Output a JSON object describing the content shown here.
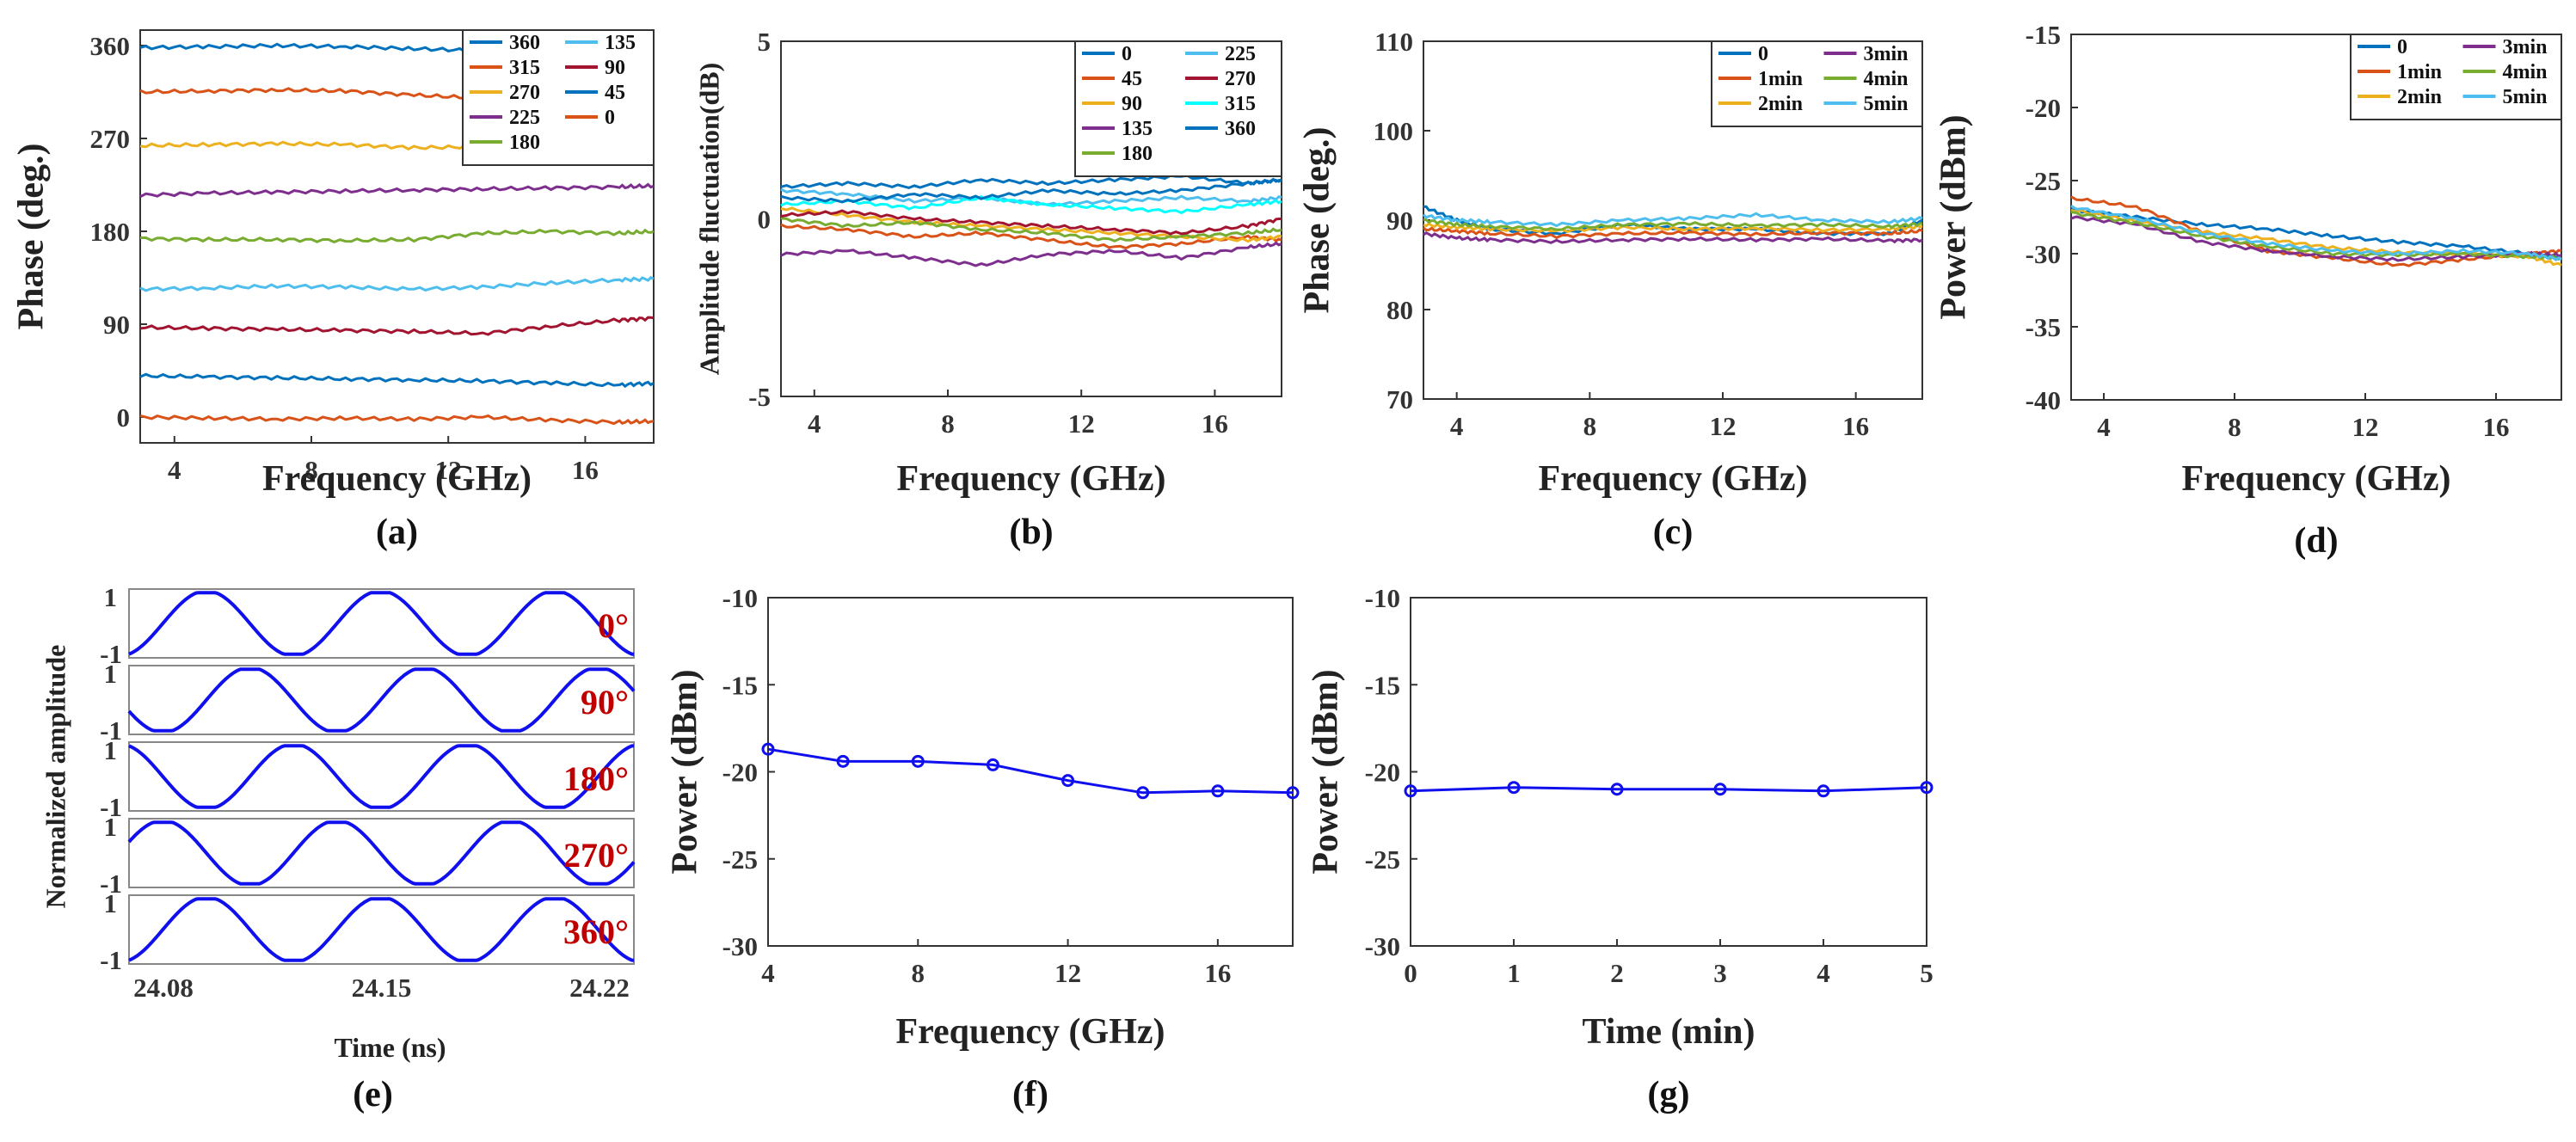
{
  "colors": {
    "matlab": [
      "#0072BD",
      "#D95319",
      "#EDB120",
      "#7E2F8E",
      "#77AC30",
      "#4DBEEE",
      "#A2142F"
    ],
    "marker_line": "#1010ee",
    "degree_label": "#c00000"
  },
  "chart_data": [
    {
      "id": "a",
      "panel_label": "(a)",
      "type": "line",
      "xlabel": "Frequency (GHz)",
      "ylabel": "Phase (deg.)",
      "xlim": [
        3,
        18
      ],
      "ylim": [
        -25,
        375
      ],
      "xticks": [
        4,
        8,
        12,
        16
      ],
      "yticks": [
        0,
        90,
        180,
        270,
        360
      ],
      "legend_order": [
        "360",
        "135",
        "315",
        "90",
        "270",
        "45",
        "225",
        "0",
        "180"
      ],
      "series": [
        {
          "name": "360",
          "color": "#0072BD",
          "x": [
            3,
            5,
            7,
            9,
            11,
            13,
            15,
            17,
            18
          ],
          "y": [
            358,
            359,
            360,
            359,
            357,
            355,
            356,
            357,
            356
          ]
        },
        {
          "name": "315",
          "color": "#D95319",
          "x": [
            3,
            5,
            7,
            9,
            11,
            13,
            15,
            17,
            18
          ],
          "y": [
            315,
            316,
            317,
            316,
            312,
            309,
            311,
            312,
            311
          ]
        },
        {
          "name": "270",
          "color": "#EDB120",
          "x": [
            3,
            5,
            7,
            9,
            11,
            13,
            15,
            17,
            18
          ],
          "y": [
            263,
            264,
            265,
            264,
            261,
            262,
            263,
            264,
            263
          ]
        },
        {
          "name": "225",
          "color": "#7E2F8E",
          "x": [
            3,
            5,
            7,
            9,
            11,
            13,
            15,
            17,
            18
          ],
          "y": [
            215,
            217,
            218,
            219,
            220,
            221,
            222,
            223,
            224
          ]
        },
        {
          "name": "180",
          "color": "#77AC30",
          "x": [
            3,
            5,
            7,
            9,
            11,
            13,
            15,
            17,
            18
          ],
          "y": [
            173,
            172,
            172,
            171,
            172,
            178,
            180,
            178,
            180
          ]
        },
        {
          "name": "135",
          "color": "#4DBEEE",
          "x": [
            3,
            5,
            7,
            9,
            11,
            13,
            15,
            17,
            18
          ],
          "y": [
            124,
            125,
            127,
            126,
            124,
            126,
            130,
            133,
            134
          ]
        },
        {
          "name": "90",
          "color": "#A2142F",
          "x": [
            3,
            5,
            7,
            9,
            11,
            13,
            15,
            17,
            18
          ],
          "y": [
            87,
            86,
            85,
            84,
            83,
            81,
            88,
            94,
            96
          ]
        },
        {
          "name": "45",
          "color": "#0072BD",
          "x": [
            3,
            5,
            7,
            9,
            11,
            13,
            15,
            17,
            18
          ],
          "y": [
            40,
            39,
            38,
            37,
            36,
            35,
            33,
            31,
            33
          ]
        },
        {
          "name": "0",
          "color": "#D95319",
          "x": [
            3,
            5,
            7,
            9,
            11,
            13,
            15,
            17,
            18
          ],
          "y": [
            0,
            -1,
            -2,
            -1,
            -2,
            0,
            -3,
            -5,
            -4
          ]
        }
      ]
    },
    {
      "id": "b",
      "panel_label": "(b)",
      "type": "line",
      "xlabel": "Frequency (GHz)",
      "ylabel": "Amplitude fluctuation(dB)",
      "xlim": [
        3,
        18
      ],
      "ylim": [
        -5,
        5
      ],
      "xticks": [
        4,
        8,
        12,
        16
      ],
      "yticks": [
        -5,
        0,
        5
      ],
      "legend_order": [
        "0",
        "225",
        "45",
        "270",
        "90",
        "315",
        "135",
        "360",
        "180"
      ],
      "series": [
        {
          "name": "0",
          "color": "#0072BD",
          "x": [
            3,
            5,
            7,
            9,
            11,
            13,
            15,
            17,
            18
          ],
          "y": [
            0.9,
            1.0,
            0.9,
            1.1,
            1.0,
            1.1,
            1.2,
            1.0,
            1.1
          ]
        },
        {
          "name": "45",
          "color": "#D95319",
          "x": [
            3,
            5,
            7,
            9,
            11,
            13,
            15,
            17,
            18
          ],
          "y": [
            -0.2,
            -0.3,
            -0.5,
            -0.4,
            -0.6,
            -0.8,
            -0.7,
            -0.5,
            -0.6
          ]
        },
        {
          "name": "90",
          "color": "#EDB120",
          "x": [
            3,
            5,
            7,
            9,
            11,
            13,
            15,
            17,
            18
          ],
          "y": [
            0.3,
            0.1,
            -0.1,
            -0.2,
            -0.3,
            -0.4,
            -0.5,
            -0.6,
            -0.5
          ]
        },
        {
          "name": "135",
          "color": "#7E2F8E",
          "x": [
            3,
            5,
            7,
            9,
            11,
            13,
            15,
            17,
            18
          ],
          "y": [
            -1.0,
            -0.9,
            -1.1,
            -1.3,
            -1.0,
            -0.9,
            -1.1,
            -0.8,
            -0.7
          ]
        },
        {
          "name": "180",
          "color": "#77AC30",
          "x": [
            3,
            5,
            7,
            9,
            11,
            13,
            15,
            17,
            18
          ],
          "y": [
            0.0,
            -0.2,
            -0.1,
            -0.3,
            -0.4,
            -0.6,
            -0.5,
            -0.4,
            -0.3
          ]
        },
        {
          "name": "225",
          "color": "#4DBEEE",
          "x": [
            3,
            5,
            7,
            9,
            11,
            13,
            15,
            17,
            18
          ],
          "y": [
            0.8,
            0.7,
            0.5,
            0.6,
            0.4,
            0.5,
            0.6,
            0.5,
            0.6
          ]
        },
        {
          "name": "270",
          "color": "#A2142F",
          "x": [
            3,
            5,
            7,
            9,
            11,
            13,
            15,
            17,
            18
          ],
          "y": [
            0.1,
            0.2,
            0.0,
            -0.1,
            -0.2,
            -0.3,
            -0.4,
            -0.2,
            0.0
          ]
        },
        {
          "name": "315",
          "color": "#00FFFF",
          "x": [
            3,
            5,
            7,
            9,
            11,
            13,
            15,
            17,
            18
          ],
          "y": [
            0.4,
            0.5,
            0.3,
            0.6,
            0.4,
            0.3,
            0.2,
            0.4,
            0.5
          ]
        },
        {
          "name": "360",
          "color": "#0072BD",
          "x": [
            3,
            5,
            7,
            9,
            11,
            13,
            15,
            17,
            18
          ],
          "y": [
            0.6,
            0.5,
            0.7,
            0.6,
            0.8,
            0.7,
            0.8,
            1.0,
            1.1
          ]
        }
      ]
    },
    {
      "id": "c",
      "panel_label": "(c)",
      "type": "line",
      "xlabel": "Frequency (GHz)",
      "ylabel": "Phase (deg.)",
      "xlim": [
        3,
        18
      ],
      "ylim": [
        70,
        110
      ],
      "xticks": [
        4,
        8,
        12,
        16
      ],
      "yticks": [
        70,
        80,
        90,
        100,
        110
      ],
      "legend_order": [
        "0",
        "3min",
        "1min",
        "4min",
        "2min",
        "5min"
      ],
      "series": [
        {
          "name": "0",
          "color": "#0072BD",
          "x": [
            3,
            4,
            5,
            7,
            9,
            11,
            13,
            15,
            17,
            18
          ],
          "y": [
            91.5,
            90.0,
            89.0,
            88.5,
            89.5,
            89.0,
            89.0,
            88.5,
            88.5,
            90.0
          ]
        },
        {
          "name": "1min",
          "color": "#D95319",
          "x": [
            3,
            4,
            5,
            7,
            9,
            11,
            13,
            15,
            17,
            18
          ],
          "y": [
            89.0,
            88.8,
            88.5,
            88.2,
            88.5,
            88.6,
            88.4,
            88.6,
            88.5,
            88.8
          ]
        },
        {
          "name": "2min",
          "color": "#EDB120",
          "x": [
            3,
            4,
            5,
            7,
            9,
            11,
            13,
            15,
            17,
            18
          ],
          "y": [
            89.5,
            89.2,
            89.0,
            88.8,
            89.2,
            89.0,
            89.1,
            88.9,
            89.0,
            89.3
          ]
        },
        {
          "name": "3min",
          "color": "#7E2F8E",
          "x": [
            3,
            4,
            5,
            7,
            9,
            11,
            13,
            15,
            17,
            18
          ],
          "y": [
            88.5,
            88.0,
            87.8,
            87.6,
            87.8,
            87.9,
            87.8,
            87.9,
            87.7,
            87.8
          ]
        },
        {
          "name": "4min",
          "color": "#77AC30",
          "x": [
            3,
            4,
            5,
            7,
            9,
            11,
            13,
            15,
            17,
            18
          ],
          "y": [
            90.0,
            89.5,
            89.3,
            89.0,
            89.5,
            89.6,
            89.4,
            89.5,
            89.3,
            89.6
          ]
        },
        {
          "name": "5min",
          "color": "#4DBEEE",
          "x": [
            3,
            4,
            5,
            7,
            9,
            11,
            13,
            15,
            17,
            18
          ],
          "y": [
            90.5,
            90.0,
            89.8,
            89.5,
            90.0,
            90.2,
            90.6,
            90.0,
            89.8,
            90.2
          ]
        }
      ]
    },
    {
      "id": "d",
      "panel_label": "(d)",
      "type": "line",
      "xlabel": "Frequency (GHz)",
      "ylabel": "Power (dBm)",
      "xlim": [
        3,
        18
      ],
      "ylim": [
        -40,
        -15
      ],
      "xticks": [
        4,
        8,
        12,
        16
      ],
      "yticks": [
        -40,
        -35,
        -30,
        -25,
        -20,
        -15
      ],
      "legend_order": [
        "0",
        "3min",
        "1min",
        "4min",
        "2min",
        "5min"
      ],
      "series": [
        {
          "name": "0",
          "color": "#0072BD",
          "x": [
            3,
            5,
            7,
            9,
            11,
            13,
            15,
            17,
            18
          ],
          "y": [
            -27.0,
            -27.5,
            -28.0,
            -28.3,
            -28.8,
            -29.2,
            -29.5,
            -30.0,
            -30.3
          ]
        },
        {
          "name": "1min",
          "color": "#D95319",
          "x": [
            3,
            5,
            7,
            9,
            11,
            13,
            15,
            17,
            18
          ],
          "y": [
            -26.2,
            -26.8,
            -28.5,
            -29.8,
            -30.3,
            -30.8,
            -30.4,
            -30.0,
            -29.8
          ]
        },
        {
          "name": "2min",
          "color": "#EDB120",
          "x": [
            3,
            5,
            7,
            9,
            11,
            13,
            15,
            17,
            18
          ],
          "y": [
            -27.0,
            -27.8,
            -28.5,
            -29.0,
            -29.6,
            -29.9,
            -30.0,
            -30.2,
            -30.8
          ]
        },
        {
          "name": "3min",
          "color": "#7E2F8E",
          "x": [
            3,
            5,
            7,
            9,
            11,
            13,
            15,
            17,
            18
          ],
          "y": [
            -27.5,
            -28.0,
            -29.2,
            -29.8,
            -30.2,
            -30.4,
            -30.2,
            -30.0,
            -30.1
          ]
        },
        {
          "name": "4min",
          "color": "#77AC30",
          "x": [
            3,
            5,
            7,
            9,
            11,
            13,
            15,
            17,
            18
          ],
          "y": [
            -27.2,
            -27.9,
            -28.8,
            -29.5,
            -30.0,
            -30.1,
            -30.0,
            -30.2,
            -30.3
          ]
        },
        {
          "name": "5min",
          "color": "#4DBEEE",
          "x": [
            3,
            5,
            7,
            9,
            11,
            13,
            15,
            17,
            18
          ],
          "y": [
            -26.8,
            -27.6,
            -28.6,
            -29.3,
            -29.8,
            -30.0,
            -29.8,
            -30.0,
            -30.4
          ]
        }
      ]
    },
    {
      "id": "e",
      "panel_label": "(e)",
      "type": "line",
      "xlabel": "Time (ns)",
      "ylabel": "Normalized amplitude",
      "xlim": [
        24.08,
        24.22
      ],
      "xticks": [
        "24.08",
        "24.15",
        "24.22"
      ],
      "subplots": [
        {
          "label": "0°",
          "phase_deg": 0,
          "ytick_top": "1",
          "ytick_bottom": "-1"
        },
        {
          "label": "90°",
          "phase_deg": 90,
          "ytick_top": "1",
          "ytick_bottom": "-1"
        },
        {
          "label": "180°",
          "phase_deg": 180,
          "ytick_top": "1",
          "ytick_bottom": "-1"
        },
        {
          "label": "270°",
          "phase_deg": 270,
          "ytick_top": "1",
          "ytick_bottom": "-1"
        },
        {
          "label": "360°",
          "phase_deg": 360,
          "ytick_top": "1",
          "ytick_bottom": "-1"
        }
      ],
      "cycles_shown": 2.9
    },
    {
      "id": "f",
      "panel_label": "(f)",
      "type": "line",
      "xlabel": "Frequency (GHz)",
      "ylabel": "Power (dBm)",
      "xlim": [
        4,
        18
      ],
      "ylim": [
        -30,
        -10
      ],
      "xticks": [
        4,
        8,
        12,
        16
      ],
      "yticks": [
        -30,
        -25,
        -20,
        -15,
        -10
      ],
      "series": [
        {
          "name": "power",
          "color": "#1010ee",
          "markers": true,
          "x": [
            4,
            6,
            8,
            10,
            12,
            14,
            16,
            18
          ],
          "y": [
            -18.7,
            -19.4,
            -19.4,
            -19.6,
            -20.5,
            -21.2,
            -21.1,
            -21.2
          ]
        }
      ]
    },
    {
      "id": "g",
      "panel_label": "(g)",
      "type": "line",
      "xlabel": "Time (min)",
      "ylabel": "Power (dBm)",
      "xlim": [
        0,
        5
      ],
      "ylim": [
        -30,
        -10
      ],
      "xticks": [
        0,
        1,
        2,
        3,
        4,
        5
      ],
      "yticks": [
        -30,
        -25,
        -20,
        -15,
        -10
      ],
      "series": [
        {
          "name": "power",
          "color": "#1010ee",
          "markers": true,
          "x": [
            0,
            1,
            2,
            3,
            4,
            5
          ],
          "y": [
            -21.1,
            -20.9,
            -21.0,
            -21.0,
            -21.1,
            -20.9
          ]
        }
      ]
    }
  ]
}
